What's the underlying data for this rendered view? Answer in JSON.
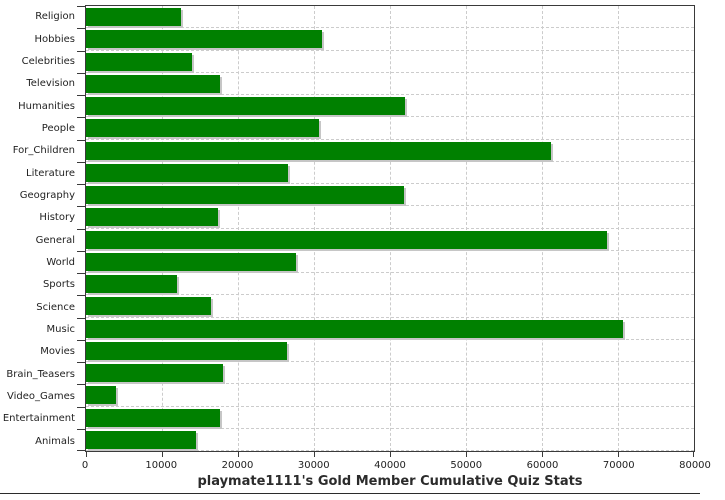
{
  "chart_data": {
    "type": "bar",
    "orientation": "horizontal",
    "title": "playmate1111's Gold Member Cumulative Quiz Stats",
    "categories": [
      "Religion",
      "Hobbies",
      "Celebrities",
      "Television",
      "Humanities",
      "People",
      "For_Children",
      "Literature",
      "Geography",
      "History",
      "General",
      "World",
      "Sports",
      "Science",
      "Music",
      "Movies",
      "Brain_Teasers",
      "Video_Games",
      "Entertainment",
      "Animals"
    ],
    "values": [
      12500,
      31000,
      14000,
      17600,
      42000,
      30700,
      61200,
      26600,
      41800,
      17400,
      68600,
      27600,
      12000,
      16500,
      70700,
      26400,
      18000,
      4000,
      17600,
      14500
    ],
    "xlim": [
      0,
      80000
    ],
    "x_ticks": [
      0,
      10000,
      20000,
      30000,
      40000,
      50000,
      60000,
      70000,
      80000
    ],
    "x_tick_labels": [
      "0",
      "10000",
      "20000",
      "30000",
      "40000",
      "50000",
      "60000",
      "70000",
      "80000"
    ],
    "grid": "on",
    "legend": "none",
    "bar_color": "#008000",
    "bar_shadow_color": "#c6c6c6",
    "grid_color": "#cccccc",
    "axis_color": "#3a3a3a",
    "text_color": "#1f1f1f",
    "background_color": "#ffffff"
  }
}
